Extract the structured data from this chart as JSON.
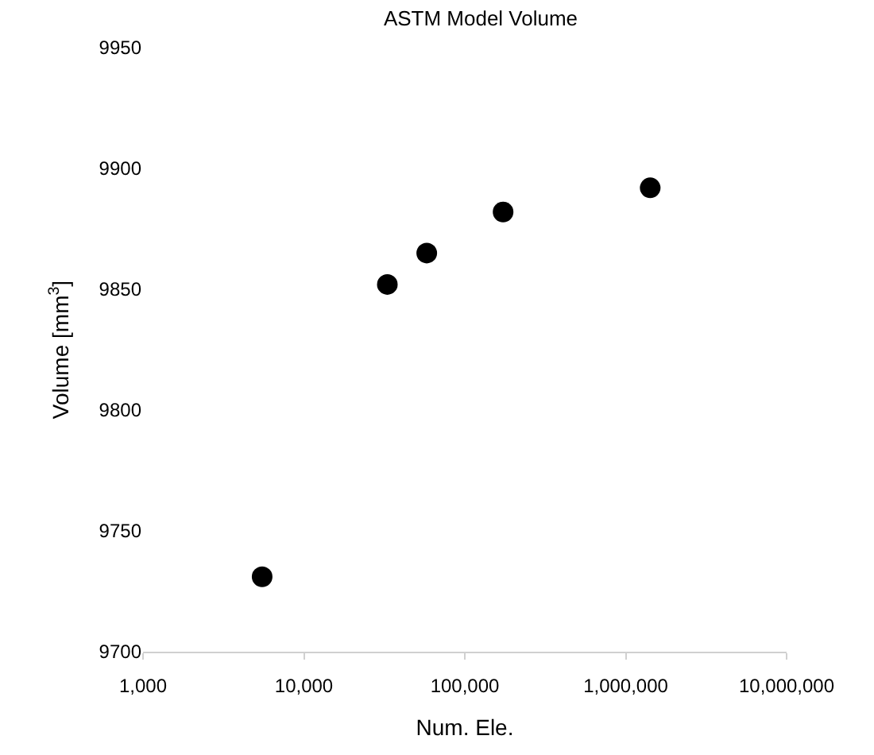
{
  "chart_data": {
    "type": "scatter",
    "title": "ASTM Model Volume",
    "xlabel": "Num. Ele.",
    "ylabel": "Volume [mm$^{3}$]",
    "log": "x",
    "x": [
      5500,
      33000,
      58000,
      173000,
      1420000
    ],
    "series": [
      {
        "color": "#000000",
        "values": [
          9731,
          9852,
          9865,
          9882,
          9892
        ]
      }
    ],
    "marker": "circle",
    "xlim": [
      1000,
      10000000
    ],
    "xticks": [
      {
        "value": 1000,
        "label": "1,000"
      },
      {
        "value": 10000,
        "label": "10,000"
      },
      {
        "value": 100000,
        "label": "100,000"
      },
      {
        "value": 1000000,
        "label": "1,000,000"
      },
      {
        "value": 10000000,
        "label": "10,000,000"
      }
    ],
    "ylim": [
      9700,
      9950
    ],
    "yticks": [
      9700,
      9750,
      9800,
      9850,
      9900,
      9950
    ]
  }
}
